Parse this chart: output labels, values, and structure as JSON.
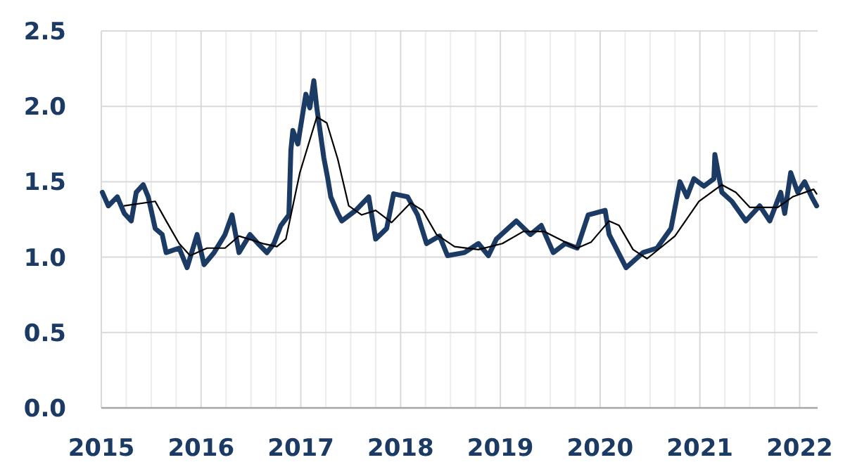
{
  "chart_data": {
    "type": "line",
    "xlim": [
      2015,
      2022.18
    ],
    "xticks": [
      2015,
      {
        "value": 2015.25,
        "label": null
      },
      {
        "value": 2015.5,
        "label": null
      },
      {
        "value": 2015.75,
        "label": null
      },
      2016,
      {
        "value": 2016.25,
        "label": null
      },
      {
        "value": 2016.5,
        "label": null
      },
      {
        "value": 2016.75,
        "label": null
      },
      2017,
      {
        "value": 2017.25,
        "label": null
      },
      {
        "value": 2017.5,
        "label": null
      },
      {
        "value": 2017.75,
        "label": null
      },
      2018,
      {
        "value": 2018.25,
        "label": null
      },
      {
        "value": 2018.5,
        "label": null
      },
      {
        "value": 2018.75,
        "label": null
      },
      2019,
      {
        "value": 2019.25,
        "label": null
      },
      {
        "value": 2019.5,
        "label": null
      },
      {
        "value": 2019.75,
        "label": null
      },
      2020,
      {
        "value": 2020.25,
        "label": null
      },
      {
        "value": 2020.5,
        "label": null
      },
      {
        "value": 2020.75,
        "label": null
      },
      2021,
      {
        "value": 2021.25,
        "label": null
      },
      {
        "value": 2021.5,
        "label": null
      },
      {
        "value": 2021.75,
        "label": null
      },
      2022
    ],
    "ylim": [
      0,
      2.5
    ],
    "yticks": [
      {
        "value": 0,
        "label": "0.0"
      },
      {
        "value": 0.5,
        "label": "0.5"
      },
      {
        "value": 1,
        "label": "1.0"
      },
      {
        "value": 1.5,
        "label": "1.5"
      },
      {
        "value": 2,
        "label": "2.0"
      },
      {
        "value": 2.5,
        "label": "2.5"
      }
    ],
    "grid": true,
    "series": [
      {
        "color": "#1b3a64",
        "x": [
          2015.01,
          2015.07,
          2015.16,
          2015.23,
          2015.3,
          2015.35,
          2015.42,
          2015.47,
          2015.54,
          2015.61,
          2015.65,
          2015.78,
          2015.86,
          2015.96,
          2016.03,
          2016.13,
          2016.24,
          2016.31,
          2016.38,
          2016.49,
          2016.57,
          2016.66,
          2016.73,
          2016.8,
          2016.88,
          2016.9,
          2016.92,
          2016.97,
          2017.05,
          2017.09,
          2017.13,
          2017.16,
          2017.23,
          2017.27,
          2017.3,
          2017.37,
          2017.41,
          2017.55,
          2017.68,
          2017.75,
          2017.86,
          2017.93,
          2018.07,
          2018.17,
          2018.26,
          2018.39,
          2018.47,
          2018.64,
          2018.78,
          2018.88,
          2018.96,
          2019.16,
          2019.3,
          2019.41,
          2019.53,
          2019.65,
          2019.77,
          2019.88,
          2020.05,
          2020.09,
          2020.26,
          2020.43,
          2020.57,
          2020.71,
          2020.8,
          2020.87,
          2020.94,
          2021.04,
          2021.14,
          2021.15,
          2021.22,
          2021.32,
          2021.46,
          2021.6,
          2021.7,
          2021.81,
          2021.85,
          2021.91,
          2021.98,
          2022.05,
          2022.12,
          2022.17
        ],
        "values": [
          1.43,
          1.34,
          1.4,
          1.29,
          1.24,
          1.43,
          1.48,
          1.4,
          1.19,
          1.15,
          1.03,
          1.06,
          0.93,
          1.15,
          0.95,
          1.03,
          1.15,
          1.28,
          1.03,
          1.15,
          1.09,
          1.03,
          1.09,
          1.21,
          1.28,
          1.71,
          1.84,
          1.75,
          2.08,
          1.99,
          2.17,
          1.99,
          1.66,
          1.52,
          1.4,
          1.29,
          1.24,
          1.31,
          1.4,
          1.12,
          1.19,
          1.42,
          1.4,
          1.28,
          1.09,
          1.14,
          1.01,
          1.03,
          1.09,
          1.01,
          1.12,
          1.24,
          1.15,
          1.21,
          1.03,
          1.09,
          1.06,
          1.28,
          1.31,
          1.15,
          0.93,
          1.03,
          1.06,
          1.19,
          1.5,
          1.4,
          1.52,
          1.47,
          1.52,
          1.68,
          1.43,
          1.37,
          1.24,
          1.34,
          1.24,
          1.43,
          1.29,
          1.56,
          1.43,
          1.5,
          1.4,
          1.34
        ]
      },
      {
        "color": "#000000",
        "x": [
          2015.23,
          2015.54,
          2015.65,
          2015.78,
          2015.89,
          2016.06,
          2016.24,
          2016.38,
          2016.62,
          2016.76,
          2016.85,
          2016.99,
          2017.16,
          2017.26,
          2017.37,
          2017.48,
          2017.61,
          2017.75,
          2017.91,
          2018.1,
          2018.22,
          2018.36,
          2018.54,
          2018.78,
          2019.02,
          2019.23,
          2019.44,
          2019.77,
          2019.91,
          2020.09,
          2020.19,
          2020.33,
          2020.47,
          2020.75,
          2020.99,
          2021.22,
          2021.36,
          2021.5,
          2021.78,
          2021.93,
          2022.14,
          2022.17
        ],
        "values": [
          1.34,
          1.37,
          1.24,
          1.09,
          1.01,
          1.06,
          1.06,
          1.14,
          1.09,
          1.07,
          1.12,
          1.56,
          1.93,
          1.89,
          1.65,
          1.34,
          1.28,
          1.31,
          1.23,
          1.36,
          1.31,
          1.15,
          1.07,
          1.05,
          1.09,
          1.17,
          1.17,
          1.06,
          1.1,
          1.24,
          1.21,
          1.05,
          0.99,
          1.14,
          1.37,
          1.48,
          1.43,
          1.33,
          1.33,
          1.4,
          1.45,
          1.42
        ]
      }
    ]
  }
}
